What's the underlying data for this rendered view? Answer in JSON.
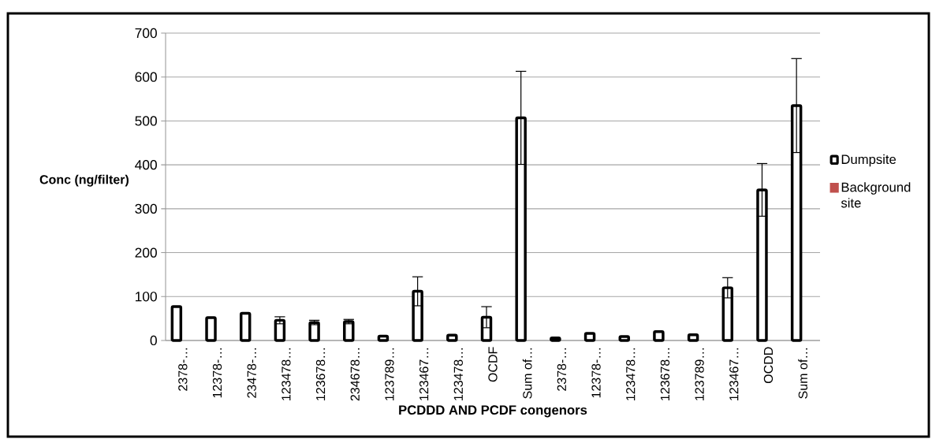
{
  "chart_data": {
    "type": "bar",
    "categories": [
      "2378-…",
      "12378-…",
      "23478-…",
      "123478…",
      "123678…",
      "234678…",
      "123789…",
      "123467…",
      "123478…",
      "OCDF",
      "Sum of…",
      "2378-…",
      "12378-…",
      "123478…",
      "123678…",
      "123789…",
      "123467…",
      "OCDD",
      "Sum of…"
    ],
    "series": [
      {
        "name": "Dumpsite",
        "color": "#000000",
        "values": [
          77,
          52,
          62,
          46,
          41,
          43,
          10,
          112,
          12,
          53,
          507,
          6,
          16,
          9,
          20,
          13,
          120,
          343,
          535
        ],
        "errors": [
          null,
          null,
          null,
          8,
          5,
          5,
          null,
          33,
          null,
          24,
          106,
          null,
          null,
          null,
          null,
          null,
          23,
          60,
          107
        ]
      },
      {
        "name": "Background site",
        "color": "#c0504d",
        "values": [
          null,
          null,
          null,
          null,
          null,
          null,
          null,
          null,
          null,
          null,
          null,
          null,
          null,
          null,
          null,
          null,
          null,
          null,
          null
        ]
      }
    ],
    "xlabel": "PCDDD AND PCDF congenors",
    "ylabel": "Conc (ng/filter)",
    "ylim": [
      0,
      700
    ],
    "yticks": [
      0,
      100,
      200,
      300,
      400,
      500,
      600,
      700
    ],
    "grid": "y",
    "legend": "right"
  }
}
